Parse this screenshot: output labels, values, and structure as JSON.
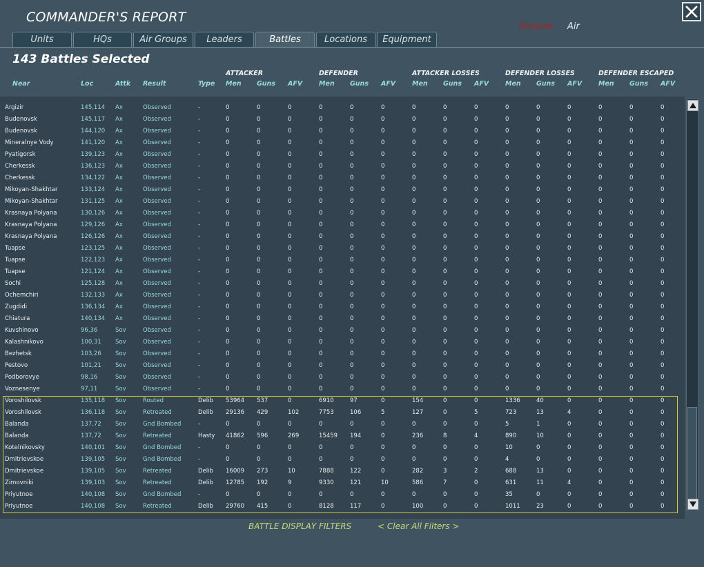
{
  "title": "COMMANDER'S REPORT",
  "tabs": [
    "Units",
    "HQs",
    "Air Groups",
    "Leaders",
    "Battles",
    "Locations",
    "Equipment"
  ],
  "active_tab": "Battles",
  "mode": {
    "ground": "Ground",
    "air": "Air",
    "ground_color": "#b21e1e"
  },
  "summary": "143 Battles Selected",
  "groups": [
    "ATTACKER",
    "DEFENDER",
    "ATTACKER LOSSES",
    "DEFENDER LOSSES",
    "DEFENDER ESCAPED"
  ],
  "columns": [
    "Near",
    "Loc",
    "Attk",
    "Result",
    "Type",
    "Men",
    "Guns",
    "AFV",
    "Men",
    "Guns",
    "AFV",
    "Men",
    "Guns",
    "AFV",
    "Men",
    "Guns",
    "AFV",
    "Men",
    "Guns",
    "AFV"
  ],
  "rows": [
    [
      "Argizir",
      "145,114",
      "Ax",
      "Observed",
      "-",
      "0",
      "0",
      "0",
      "0",
      "0",
      "0",
      "0",
      "0",
      "0",
      "0",
      "0",
      "0",
      "0",
      "0",
      "0"
    ],
    [
      "Budenovsk",
      "145,117",
      "Ax",
      "Observed",
      "-",
      "0",
      "0",
      "0",
      "0",
      "0",
      "0",
      "0",
      "0",
      "0",
      "0",
      "0",
      "0",
      "0",
      "0",
      "0"
    ],
    [
      "Budenovsk",
      "144,120",
      "Ax",
      "Observed",
      "-",
      "0",
      "0",
      "0",
      "0",
      "0",
      "0",
      "0",
      "0",
      "0",
      "0",
      "0",
      "0",
      "0",
      "0",
      "0"
    ],
    [
      "Mineralnye Vody",
      "141,120",
      "Ax",
      "Observed",
      "-",
      "0",
      "0",
      "0",
      "0",
      "0",
      "0",
      "0",
      "0",
      "0",
      "0",
      "0",
      "0",
      "0",
      "0",
      "0"
    ],
    [
      "Pyatigorsk",
      "139,123",
      "Ax",
      "Observed",
      "-",
      "0",
      "0",
      "0",
      "0",
      "0",
      "0",
      "0",
      "0",
      "0",
      "0",
      "0",
      "0",
      "0",
      "0",
      "0"
    ],
    [
      "Cherkessk",
      "136,123",
      "Ax",
      "Observed",
      "-",
      "0",
      "0",
      "0",
      "0",
      "0",
      "0",
      "0",
      "0",
      "0",
      "0",
      "0",
      "0",
      "0",
      "0",
      "0"
    ],
    [
      "Cherkessk",
      "134,122",
      "Ax",
      "Observed",
      "-",
      "0",
      "0",
      "0",
      "0",
      "0",
      "0",
      "0",
      "0",
      "0",
      "0",
      "0",
      "0",
      "0",
      "0",
      "0"
    ],
    [
      "Mikoyan-Shakhtar",
      "133,124",
      "Ax",
      "Observed",
      "-",
      "0",
      "0",
      "0",
      "0",
      "0",
      "0",
      "0",
      "0",
      "0",
      "0",
      "0",
      "0",
      "0",
      "0",
      "0"
    ],
    [
      "Mikoyan-Shakhtar",
      "131,125",
      "Ax",
      "Observed",
      "-",
      "0",
      "0",
      "0",
      "0",
      "0",
      "0",
      "0",
      "0",
      "0",
      "0",
      "0",
      "0",
      "0",
      "0",
      "0"
    ],
    [
      "Krasnaya Polyana",
      "130,126",
      "Ax",
      "Observed",
      "-",
      "0",
      "0",
      "0",
      "0",
      "0",
      "0",
      "0",
      "0",
      "0",
      "0",
      "0",
      "0",
      "0",
      "0",
      "0"
    ],
    [
      "Krasnaya Polyana",
      "129,126",
      "Ax",
      "Observed",
      "-",
      "0",
      "0",
      "0",
      "0",
      "0",
      "0",
      "0",
      "0",
      "0",
      "0",
      "0",
      "0",
      "0",
      "0",
      "0"
    ],
    [
      "Krasnaya Polyana",
      "126,126",
      "Ax",
      "Observed",
      "-",
      "0",
      "0",
      "0",
      "0",
      "0",
      "0",
      "0",
      "0",
      "0",
      "0",
      "0",
      "0",
      "0",
      "0",
      "0"
    ],
    [
      "Tuapse",
      "123,125",
      "Ax",
      "Observed",
      "-",
      "0",
      "0",
      "0",
      "0",
      "0",
      "0",
      "0",
      "0",
      "0",
      "0",
      "0",
      "0",
      "0",
      "0",
      "0"
    ],
    [
      "Tuapse",
      "122,123",
      "Ax",
      "Observed",
      "-",
      "0",
      "0",
      "0",
      "0",
      "0",
      "0",
      "0",
      "0",
      "0",
      "0",
      "0",
      "0",
      "0",
      "0",
      "0"
    ],
    [
      "Tuapse",
      "121,124",
      "Ax",
      "Observed",
      "-",
      "0",
      "0",
      "0",
      "0",
      "0",
      "0",
      "0",
      "0",
      "0",
      "0",
      "0",
      "0",
      "0",
      "0",
      "0"
    ],
    [
      "Sochi",
      "125,128",
      "Ax",
      "Observed",
      "-",
      "0",
      "0",
      "0",
      "0",
      "0",
      "0",
      "0",
      "0",
      "0",
      "0",
      "0",
      "0",
      "0",
      "0",
      "0"
    ],
    [
      "Ochemchiri",
      "132,133",
      "Ax",
      "Observed",
      "-",
      "0",
      "0",
      "0",
      "0",
      "0",
      "0",
      "0",
      "0",
      "0",
      "0",
      "0",
      "0",
      "0",
      "0",
      "0"
    ],
    [
      "Zugdidi",
      "136,134",
      "Ax",
      "Observed",
      "-",
      "0",
      "0",
      "0",
      "0",
      "0",
      "0",
      "0",
      "0",
      "0",
      "0",
      "0",
      "0",
      "0",
      "0",
      "0"
    ],
    [
      "Chiatura",
      "140,134",
      "Ax",
      "Observed",
      "-",
      "0",
      "0",
      "0",
      "0",
      "0",
      "0",
      "0",
      "0",
      "0",
      "0",
      "0",
      "0",
      "0",
      "0",
      "0"
    ],
    [
      "Kuvshinovo",
      "96,36",
      "Sov",
      "Observed",
      "-",
      "0",
      "0",
      "0",
      "0",
      "0",
      "0",
      "0",
      "0",
      "0",
      "0",
      "0",
      "0",
      "0",
      "0",
      "0"
    ],
    [
      "Kalashnikovo",
      "100,31",
      "Sov",
      "Observed",
      "-",
      "0",
      "0",
      "0",
      "0",
      "0",
      "0",
      "0",
      "0",
      "0",
      "0",
      "0",
      "0",
      "0",
      "0",
      "0"
    ],
    [
      "Bezhetsk",
      "103,26",
      "Sov",
      "Observed",
      "-",
      "0",
      "0",
      "0",
      "0",
      "0",
      "0",
      "0",
      "0",
      "0",
      "0",
      "0",
      "0",
      "0",
      "0",
      "0"
    ],
    [
      "Pestovo",
      "101,21",
      "Sov",
      "Observed",
      "-",
      "0",
      "0",
      "0",
      "0",
      "0",
      "0",
      "0",
      "0",
      "0",
      "0",
      "0",
      "0",
      "0",
      "0",
      "0"
    ],
    [
      "Podborovye",
      "98,16",
      "Sov",
      "Observed",
      "-",
      "0",
      "0",
      "0",
      "0",
      "0",
      "0",
      "0",
      "0",
      "0",
      "0",
      "0",
      "0",
      "0",
      "0",
      "0"
    ],
    [
      "Voznesenye",
      "97,11",
      "Sov",
      "Observed",
      "-",
      "0",
      "0",
      "0",
      "0",
      "0",
      "0",
      "0",
      "0",
      "0",
      "0",
      "0",
      "0",
      "0",
      "0",
      "0"
    ],
    [
      "Voroshilovsk",
      "135,118",
      "Sov",
      "Routed",
      "Delib",
      "53964",
      "537",
      "0",
      "6910",
      "97",
      "0",
      "154",
      "0",
      "0",
      "1336",
      "40",
      "0",
      "0",
      "0",
      "0"
    ],
    [
      "Voroshilovsk",
      "136,118",
      "Sov",
      "Retreated",
      "Delib",
      "29136",
      "429",
      "102",
      "7753",
      "106",
      "5",
      "127",
      "0",
      "5",
      "723",
      "13",
      "4",
      "0",
      "0",
      "0"
    ],
    [
      "Balanda",
      "137,72",
      "Sov",
      "Gnd Bombed",
      "-",
      "0",
      "0",
      "0",
      "0",
      "0",
      "0",
      "0",
      "0",
      "0",
      "5",
      "1",
      "0",
      "0",
      "0",
      "0"
    ],
    [
      "Balanda",
      "137,72",
      "Sov",
      "Retreated",
      "Hasty",
      "41862",
      "596",
      "269",
      "15459",
      "194",
      "0",
      "236",
      "8",
      "4",
      "890",
      "10",
      "0",
      "0",
      "0",
      "0"
    ],
    [
      "Kotelnikovsky",
      "140,101",
      "Sov",
      "Gnd Bombed",
      "-",
      "0",
      "0",
      "0",
      "0",
      "0",
      "0",
      "0",
      "0",
      "0",
      "10",
      "0",
      "0",
      "0",
      "0",
      "0"
    ],
    [
      "Dmitrievskoe",
      "139,105",
      "Sov",
      "Gnd Bombed",
      "-",
      "0",
      "0",
      "0",
      "0",
      "0",
      "0",
      "0",
      "0",
      "0",
      "4",
      "0",
      "0",
      "0",
      "0",
      "0"
    ],
    [
      "Dmitrievskoe",
      "139,105",
      "Sov",
      "Retreated",
      "Delib",
      "16009",
      "273",
      "10",
      "7888",
      "122",
      "0",
      "282",
      "3",
      "2",
      "688",
      "13",
      "0",
      "0",
      "0",
      "0"
    ],
    [
      "Zimovniki",
      "139,103",
      "Sov",
      "Retreated",
      "Delib",
      "12785",
      "192",
      "9",
      "9330",
      "121",
      "10",
      "586",
      "7",
      "0",
      "631",
      "11",
      "4",
      "0",
      "0",
      "0"
    ],
    [
      "Priyutnoe",
      "140,108",
      "Sov",
      "Gnd Bombed",
      "-",
      "0",
      "0",
      "0",
      "0",
      "0",
      "0",
      "0",
      "0",
      "0",
      "35",
      "0",
      "0",
      "0",
      "0",
      "0"
    ],
    [
      "Priyutnoe",
      "140,108",
      "Sov",
      "Retreated",
      "Delib",
      "29760",
      "415",
      "0",
      "8128",
      "117",
      "0",
      "100",
      "0",
      "0",
      "1011",
      "23",
      "0",
      "0",
      "0",
      "0"
    ]
  ],
  "footer": {
    "filters": "BATTLE DISPLAY FILTERS",
    "clear": "< Clear All Filters >"
  }
}
